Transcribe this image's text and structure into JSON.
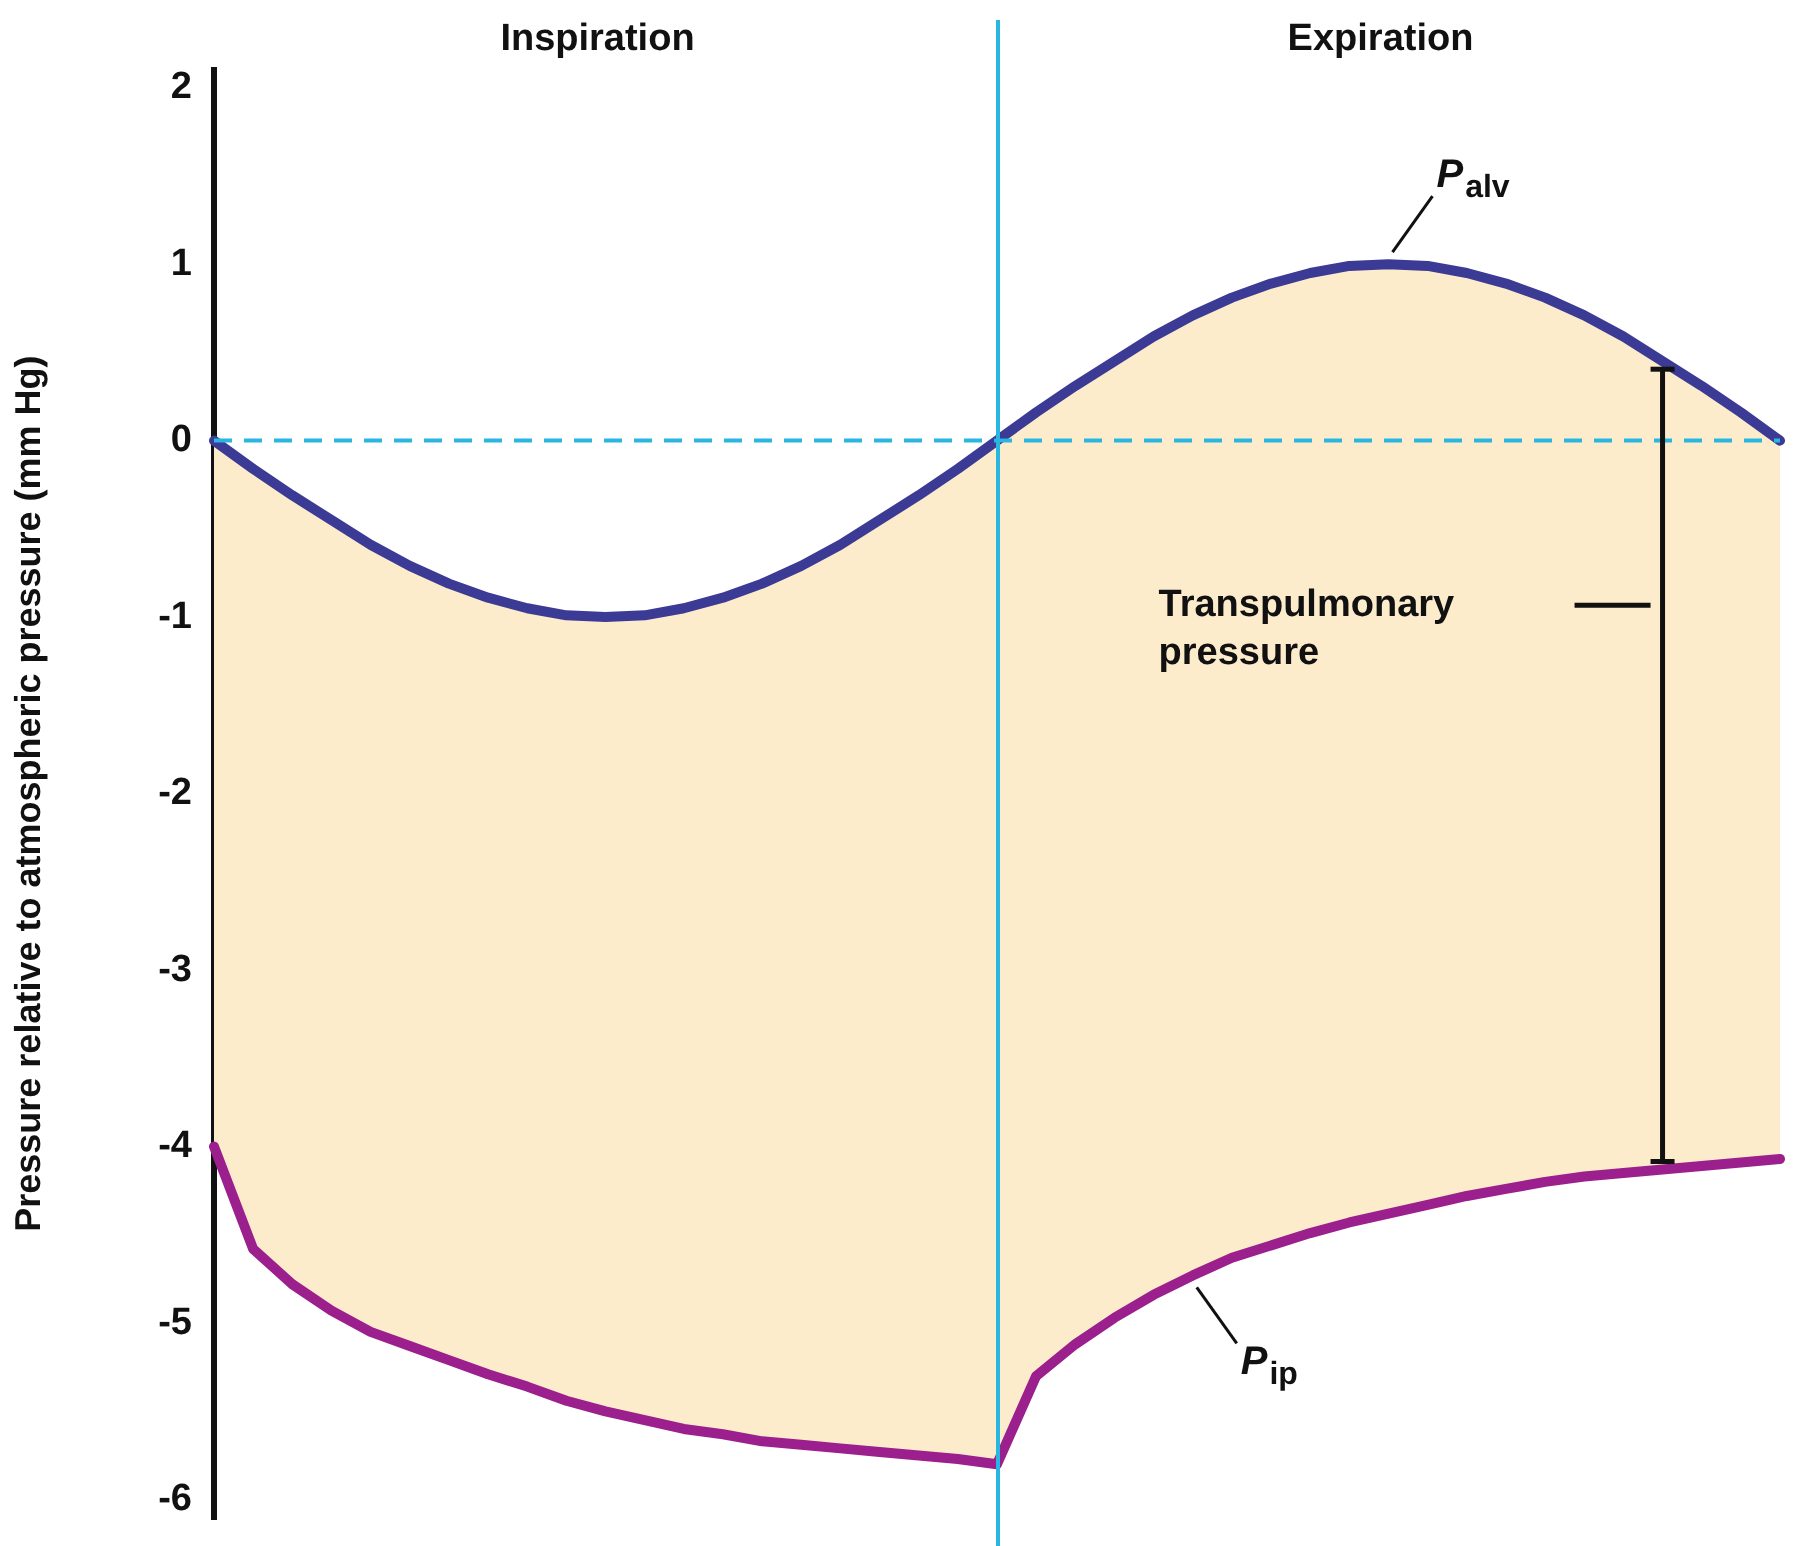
{
  "chart_data": {
    "type": "line",
    "ylabel": "Pressure relative to atmospheric pressure (mm Hg)",
    "categories": [
      null,
      null,
      null,
      null,
      null,
      null,
      null,
      null,
      null,
      null,
      null,
      null,
      null,
      null,
      null,
      null,
      null,
      null,
      null,
      null,
      null,
      null,
      null,
      null,
      null,
      null,
      null,
      null,
      null,
      null,
      null,
      null,
      null,
      null,
      null,
      null,
      null,
      null,
      null,
      null,
      null
    ],
    "ylim": [
      -6.1,
      2.1
    ],
    "yticks": [
      -6,
      -5,
      -4,
      -3,
      -2,
      -1,
      0,
      1,
      2
    ],
    "tick_labels": "y",
    "grid": false,
    "legend": false,
    "marker": "none",
    "line_style": "solid",
    "series": [
      {
        "name": "P$_{alv}$",
        "color": "#3b3a94",
        "values": [
          0,
          -0.16,
          -0.31,
          -0.45,
          -0.59,
          -0.71,
          -0.81,
          -0.89,
          -0.95,
          -0.99,
          -1,
          -0.99,
          -0.95,
          -0.89,
          -0.81,
          -0.71,
          -0.59,
          -0.45,
          -0.31,
          -0.16,
          0,
          0.16,
          0.31,
          0.45,
          0.59,
          0.71,
          0.81,
          0.89,
          0.95,
          0.99,
          1,
          0.99,
          0.95,
          0.89,
          0.81,
          0.71,
          0.59,
          0.45,
          0.31,
          0.16,
          0
        ],
        "upper": [
          0,
          -0.16,
          -0.31,
          -0.45,
          -0.59,
          -0.71,
          -0.81,
          -0.89,
          -0.95,
          -0.99,
          -1,
          -0.99,
          -0.95,
          -0.89,
          -0.81,
          -0.71,
          -0.59,
          -0.45,
          -0.31,
          -0.16,
          0,
          0.16,
          0.31,
          0.45,
          0.59,
          0.71,
          0.81,
          0.89,
          0.95,
          0.99,
          1,
          0.99,
          0.95,
          0.89,
          0.81,
          0.71,
          0.59,
          0.45,
          0.31,
          0.16,
          0
        ],
        "lower": [
          -4,
          -4.58,
          -4.78,
          -4.93,
          -5.05,
          -5.13,
          -5.21,
          -5.29,
          -5.36,
          -5.44,
          -5.5,
          -5.55,
          -5.6,
          -5.63,
          -5.67,
          -5.69,
          -5.71,
          -5.73,
          -5.75,
          -5.77,
          -5.8,
          -5.3,
          -5.12,
          -4.97,
          -4.84,
          -4.73,
          -4.63,
          -4.56,
          -4.49,
          -4.43,
          -4.38,
          -4.33,
          -4.28,
          -4.24,
          -4.2,
          -4.17,
          -4.15,
          -4.13,
          -4.11,
          -4.09,
          -4.07
        ]
      },
      {
        "name": "P$_{ip}$",
        "color": "#9b1f8c",
        "values": [
          -4,
          -4.58,
          -4.78,
          -4.93,
          -5.05,
          -5.13,
          -5.21,
          -5.29,
          -5.36,
          -5.44,
          -5.5,
          -5.55,
          -5.6,
          -5.63,
          -5.67,
          -5.69,
          -5.71,
          -5.73,
          -5.75,
          -5.77,
          -5.8,
          -5.3,
          -5.12,
          -4.97,
          -4.84,
          -4.73,
          -4.63,
          -4.56,
          -4.49,
          -4.43,
          -4.38,
          -4.33,
          -4.28,
          -4.24,
          -4.2,
          -4.17,
          -4.15,
          -4.13,
          -4.11,
          -4.09,
          -4.07
        ]
      }
    ],
    "ref_lines": [
      {
        "axis": "y",
        "value": 0,
        "color": "#29b6e0",
        "line_style": "dashed"
      }
    ],
    "annotations": [
      "Inspiration",
      "Expiration",
      "Transpulmonary pressure"
    ]
  }
}
